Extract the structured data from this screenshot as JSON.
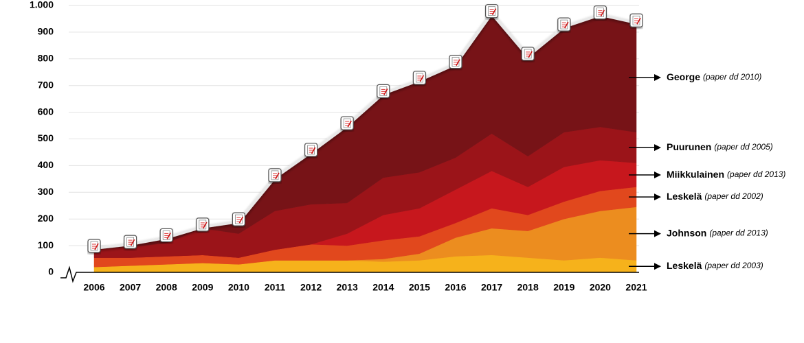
{
  "chart_data": {
    "type": "stacked-area",
    "categories": [
      "2006",
      "2007",
      "2008",
      "2009",
      "2010",
      "2011",
      "2012",
      "2013",
      "2014",
      "2015",
      "2016",
      "2017",
      "2018",
      "2019",
      "2020",
      "2021"
    ],
    "ylim": [
      0,
      1000
    ],
    "yticks": [
      0,
      100,
      200,
      300,
      400,
      500,
      600,
      700,
      800,
      900,
      {
        "value": 1000,
        "label": "1.000"
      }
    ],
    "grid": true,
    "series": [
      {
        "name": "Leskelä",
        "note": "(paper dd 2003)",
        "color": "#f6b21b",
        "values": [
          20,
          25,
          30,
          35,
          30,
          45,
          45,
          45,
          40,
          45,
          60,
          65,
          55,
          45,
          55,
          45
        ]
      },
      {
        "name": "Johnson",
        "note": "(paper dd 2013)",
        "color": "#ec8d1f",
        "values": [
          0,
          0,
          0,
          0,
          0,
          0,
          0,
          0,
          10,
          25,
          70,
          100,
          100,
          155,
          175,
          200
        ]
      },
      {
        "name": "Leskelä",
        "note": "(paper dd 2002)",
        "color": "#e1481d",
        "values": [
          35,
          30,
          30,
          30,
          25,
          40,
          60,
          55,
          70,
          65,
          55,
          75,
          60,
          65,
          75,
          75
        ]
      },
      {
        "name": "Miikkulainen",
        "note": "(paper dd 2013)",
        "color": "#c7171d",
        "values": [
          0,
          0,
          0,
          0,
          0,
          0,
          0,
          45,
          95,
          105,
          125,
          140,
          105,
          130,
          115,
          90
        ]
      },
      {
        "name": "Puurunen",
        "note": "(paper dd 2005)",
        "color": "#9b1419",
        "values": [
          30,
          40,
          50,
          100,
          90,
          145,
          150,
          115,
          140,
          135,
          120,
          140,
          115,
          130,
          125,
          115
        ]
      },
      {
        "name": "George",
        "note": "(paper dd 2010)",
        "color": "#771317",
        "values": [
          5,
          10,
          20,
          5,
          45,
          125,
          195,
          290,
          315,
          345,
          350,
          450,
          375,
          395,
          420,
          410
        ]
      }
    ]
  }
}
